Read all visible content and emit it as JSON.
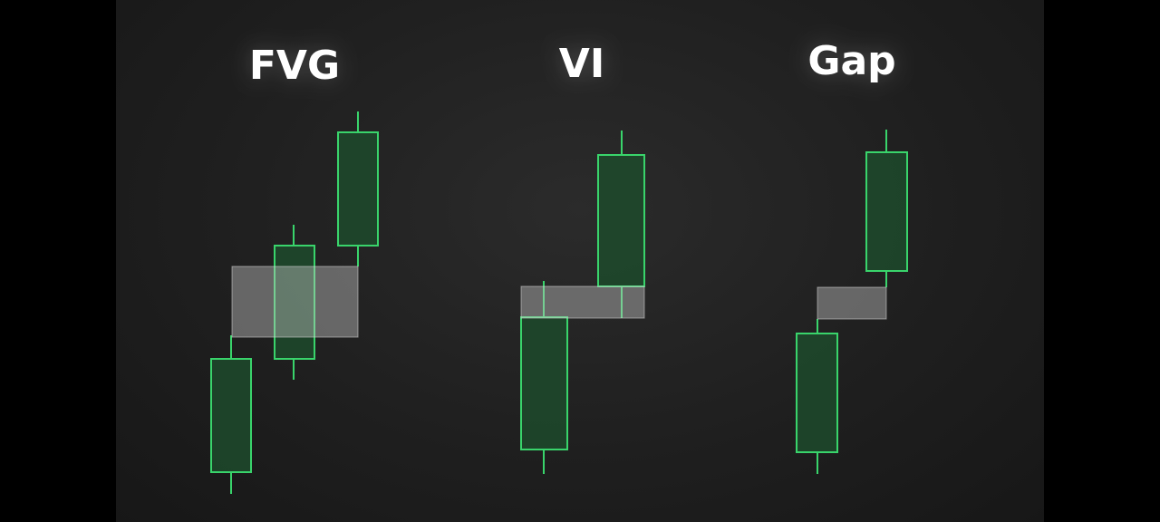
{
  "titles": {
    "fvg": "FVG",
    "vi": "VI",
    "gap": "Gap"
  },
  "colors": {
    "background": "#1f1f1f",
    "candle_outline": "#39d46b",
    "candle_fill": "#1d4a2b",
    "zone_fill": "#c8c8c8",
    "title": "#ffffff"
  }
}
